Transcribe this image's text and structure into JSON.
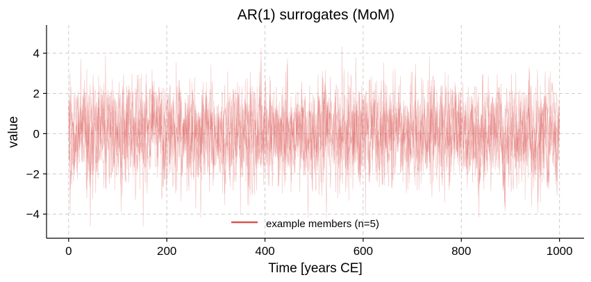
{
  "chart_data": {
    "type": "line",
    "title": "AR(1) surrogates (MoM)",
    "xlabel": "Time [years CE]",
    "ylabel": "value",
    "xlim": [
      -45,
      1050
    ],
    "ylim": [
      -5.2,
      5.4
    ],
    "xticks": [
      0,
      200,
      400,
      600,
      800,
      1000
    ],
    "yticks": [
      -4,
      -2,
      0,
      2,
      4
    ],
    "xtick_labels": [
      "0",
      "200",
      "400",
      "600",
      "800",
      "1000"
    ],
    "ytick_labels": [
      "−4",
      "−2",
      "0",
      "2",
      "4"
    ],
    "grid": true,
    "legend": {
      "placement": "lower-center",
      "entries": [
        {
          "label": "example members (n=5)",
          "color": "#d9534f"
        }
      ]
    },
    "series_style": {
      "color": "#d9534f",
      "opacity": 0.3
    },
    "n_members": 5,
    "x_start": 0,
    "x_end": 1000,
    "x_step": 1,
    "value_range": [
      -4.6,
      5.0
    ]
  }
}
